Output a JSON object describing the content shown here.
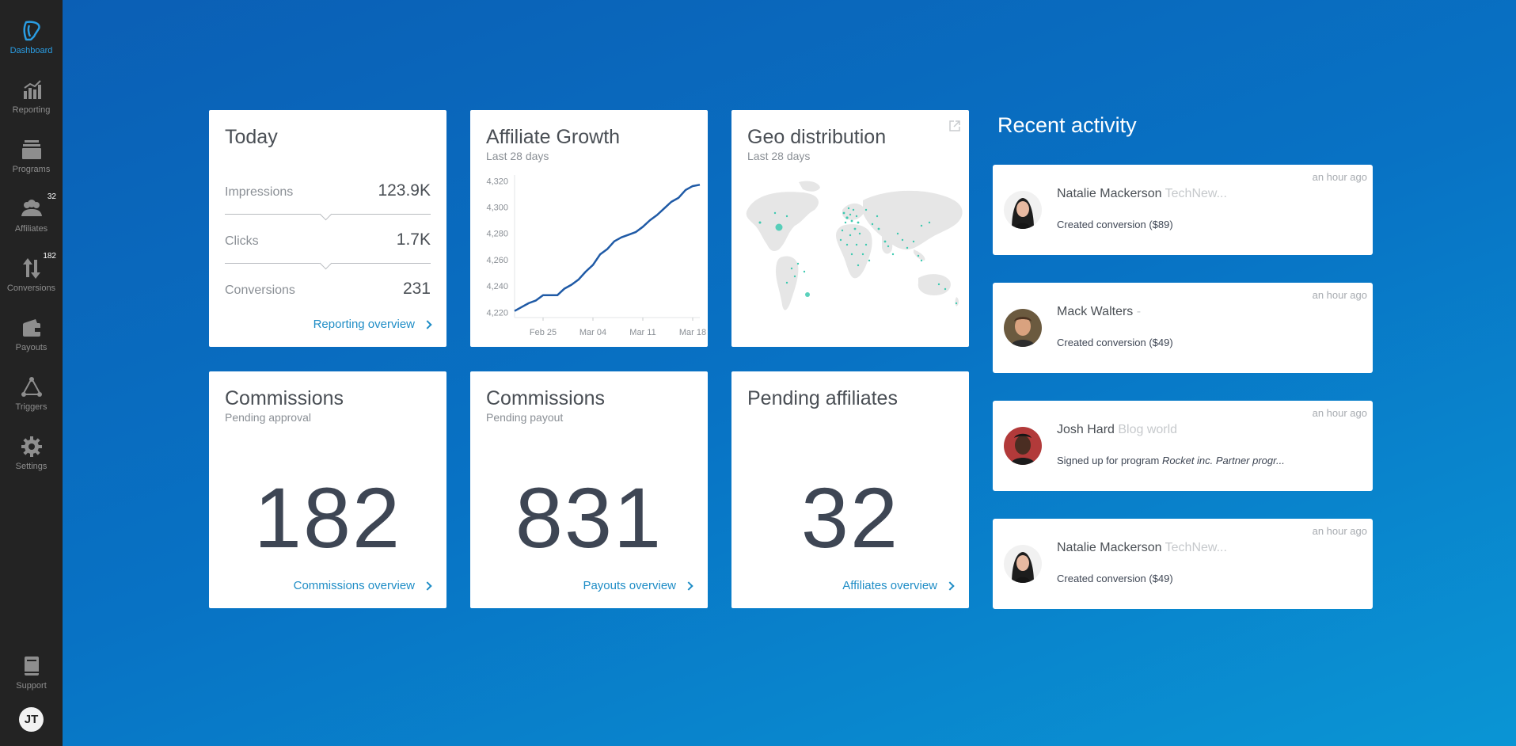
{
  "sidebar": {
    "items": [
      {
        "label": "Dashboard",
        "icon": "dashboard-logo-icon"
      },
      {
        "label": "Reporting",
        "icon": "chart-icon"
      },
      {
        "label": "Programs",
        "icon": "programs-icon"
      },
      {
        "label": "Affiliates",
        "icon": "people-icon",
        "badge": "32"
      },
      {
        "label": "Conversions",
        "icon": "arrows-icon",
        "badge": "182"
      },
      {
        "label": "Payouts",
        "icon": "wallet-icon"
      },
      {
        "label": "Triggers",
        "icon": "triggers-icon"
      },
      {
        "label": "Settings",
        "icon": "gear-icon"
      }
    ],
    "support_label": "Support",
    "user_initials": "JT"
  },
  "today": {
    "title": "Today",
    "impressions_label": "Impressions",
    "impressions_value": "123.9K",
    "clicks_label": "Clicks",
    "clicks_value": "1.7K",
    "conversions_label": "Conversions",
    "conversions_value": "231",
    "link": "Reporting overview"
  },
  "growth": {
    "title": "Affiliate Growth",
    "subtitle": "Last 28 days"
  },
  "geo": {
    "title": "Geo distribution",
    "subtitle": "Last 28 days"
  },
  "commissions_approval": {
    "title": "Commissions",
    "subtitle": "Pending approval",
    "value": "182",
    "link": "Commissions overview"
  },
  "commissions_payout": {
    "title": "Commissions",
    "subtitle": "Pending payout",
    "value": "831",
    "link": "Payouts overview"
  },
  "pending_affiliates": {
    "title": "Pending affiliates",
    "value": "32",
    "link": "Affiliates overview"
  },
  "recent_activity": {
    "title": "Recent activity",
    "items": [
      {
        "time": "an hour ago",
        "name": "Natalie Mackerson",
        "org": "TechNew...",
        "desc": "Created conversion ($89)",
        "desc_em": ""
      },
      {
        "time": "an hour ago",
        "name": "Mack Walters",
        "org": "-",
        "desc": "Created conversion ($49)",
        "desc_em": ""
      },
      {
        "time": "an hour ago",
        "name": "Josh Hard",
        "org": "Blog world",
        "desc": "Signed up for program ",
        "desc_em": "Rocket inc. Partner progr..."
      },
      {
        "time": "an hour ago",
        "name": "Natalie Mackerson",
        "org": "TechNew...",
        "desc": "Created conversion ($49)",
        "desc_em": ""
      }
    ]
  },
  "chart_data": {
    "type": "line",
    "title": "Affiliate Growth",
    "xlabel": "",
    "ylabel": "",
    "x_ticks": [
      "Feb 25",
      "Mar 04",
      "Mar 11",
      "Mar 18"
    ],
    "y_ticks": [
      4220,
      4240,
      4260,
      4280,
      4300,
      4320
    ],
    "ylim": [
      4216,
      4322
    ],
    "series": [
      {
        "values": [
          4221,
          4224,
          4227,
          4229,
          4233,
          4233,
          4233,
          4238,
          4241,
          4245,
          4251,
          4256,
          4264,
          4268,
          4274,
          4277,
          4279,
          4281,
          4285,
          4290,
          4294,
          4299,
          4304,
          4307,
          4313,
          4316,
          4317
        ]
      }
    ],
    "color": "#1f5aa6",
    "grid": false
  },
  "colors": {
    "accent": "#1f8dc6",
    "sidebar": "#232323",
    "map_land": "#e6e6e6",
    "map_dots": "#3ec9b0"
  }
}
